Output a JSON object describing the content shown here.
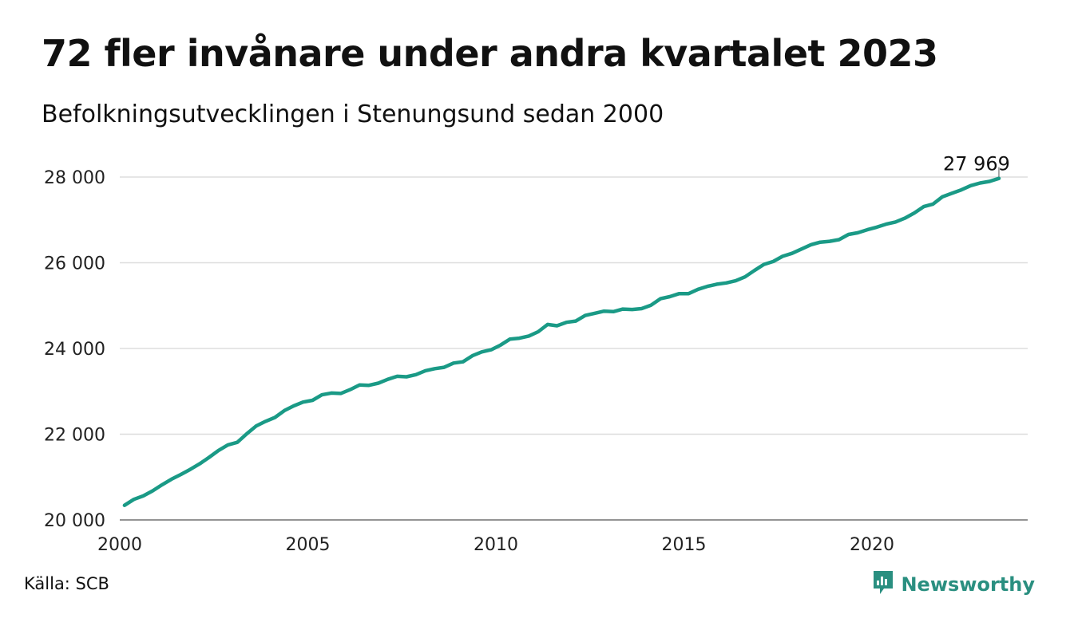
{
  "header": {
    "title": "72 fler invånare under andra kvartalet 2023",
    "subtitle": "Befolkningsutvecklingen i Stenungsund sedan 2000"
  },
  "footer": {
    "source": "Källa: SCB",
    "brand": "Newsworthy",
    "brand_icon": "newsworthy-logo-icon"
  },
  "colors": {
    "line": "#1a9a86",
    "grid": "#dddddd",
    "brand": "#2a8f80"
  },
  "chart_data": {
    "type": "line",
    "title": "72 fler invånare under andra kvartalet 2023",
    "subtitle": "Befolkningsutvecklingen i Stenungsund sedan 2000",
    "xlabel": "",
    "ylabel": "",
    "xlim": [
      2000,
      2024
    ],
    "ylim": [
      20000,
      28000
    ],
    "x_ticks": [
      2000,
      2005,
      2010,
      2015,
      2020
    ],
    "x_tick_labels": [
      "2000",
      "2005",
      "2010",
      "2015",
      "2020"
    ],
    "y_ticks": [
      20000,
      22000,
      24000,
      26000,
      28000
    ],
    "y_tick_labels": [
      "20 000",
      "22 000",
      "24 000",
      "26 000",
      "28 000"
    ],
    "grid": true,
    "annotation": {
      "x": 2023.375,
      "y": 27969,
      "label": "27 969"
    },
    "series": [
      {
        "values": [
          [
            2000.125,
            20340
          ],
          [
            2000.375,
            20480
          ],
          [
            2000.625,
            20560
          ],
          [
            2000.875,
            20680
          ],
          [
            2001.125,
            20820
          ],
          [
            2001.375,
            20950
          ],
          [
            2001.625,
            21060
          ],
          [
            2001.875,
            21180
          ],
          [
            2002.125,
            21310
          ],
          [
            2002.375,
            21460
          ],
          [
            2002.625,
            21620
          ],
          [
            2002.875,
            21750
          ],
          [
            2003.125,
            21810
          ],
          [
            2003.375,
            22010
          ],
          [
            2003.625,
            22190
          ],
          [
            2003.875,
            22300
          ],
          [
            2004.125,
            22390
          ],
          [
            2004.375,
            22550
          ],
          [
            2004.625,
            22660
          ],
          [
            2004.875,
            22750
          ],
          [
            2005.125,
            22790
          ],
          [
            2005.375,
            22920
          ],
          [
            2005.625,
            22960
          ],
          [
            2005.875,
            22950
          ],
          [
            2006.125,
            23040
          ],
          [
            2006.375,
            23150
          ],
          [
            2006.625,
            23140
          ],
          [
            2006.875,
            23190
          ],
          [
            2007.125,
            23280
          ],
          [
            2007.375,
            23350
          ],
          [
            2007.625,
            23340
          ],
          [
            2007.875,
            23390
          ],
          [
            2008.125,
            23480
          ],
          [
            2008.375,
            23530
          ],
          [
            2008.625,
            23560
          ],
          [
            2008.875,
            23660
          ],
          [
            2009.125,
            23690
          ],
          [
            2009.375,
            23830
          ],
          [
            2009.625,
            23920
          ],
          [
            2009.875,
            23970
          ],
          [
            2010.125,
            24080
          ],
          [
            2010.375,
            24220
          ],
          [
            2010.625,
            24240
          ],
          [
            2010.875,
            24290
          ],
          [
            2011.125,
            24390
          ],
          [
            2011.375,
            24560
          ],
          [
            2011.625,
            24530
          ],
          [
            2011.875,
            24610
          ],
          [
            2012.125,
            24640
          ],
          [
            2012.375,
            24770
          ],
          [
            2012.625,
            24820
          ],
          [
            2012.875,
            24870
          ],
          [
            2013.125,
            24860
          ],
          [
            2013.375,
            24920
          ],
          [
            2013.625,
            24910
          ],
          [
            2013.875,
            24930
          ],
          [
            2014.125,
            25010
          ],
          [
            2014.375,
            25160
          ],
          [
            2014.625,
            25210
          ],
          [
            2014.875,
            25280
          ],
          [
            2015.125,
            25280
          ],
          [
            2015.375,
            25380
          ],
          [
            2015.625,
            25450
          ],
          [
            2015.875,
            25500
          ],
          [
            2016.125,
            25530
          ],
          [
            2016.375,
            25580
          ],
          [
            2016.625,
            25670
          ],
          [
            2016.875,
            25820
          ],
          [
            2017.125,
            25960
          ],
          [
            2017.375,
            26030
          ],
          [
            2017.625,
            26150
          ],
          [
            2017.875,
            26220
          ],
          [
            2018.125,
            26320
          ],
          [
            2018.375,
            26420
          ],
          [
            2018.625,
            26480
          ],
          [
            2018.875,
            26500
          ],
          [
            2019.125,
            26540
          ],
          [
            2019.375,
            26660
          ],
          [
            2019.625,
            26700
          ],
          [
            2019.875,
            26770
          ],
          [
            2020.125,
            26830
          ],
          [
            2020.375,
            26900
          ],
          [
            2020.625,
            26950
          ],
          [
            2020.875,
            27040
          ],
          [
            2021.125,
            27160
          ],
          [
            2021.375,
            27310
          ],
          [
            2021.625,
            27370
          ],
          [
            2021.875,
            27540
          ],
          [
            2022.125,
            27620
          ],
          [
            2022.375,
            27700
          ],
          [
            2022.625,
            27800
          ],
          [
            2022.875,
            27860
          ],
          [
            2023.125,
            27897
          ],
          [
            2023.375,
            27969
          ]
        ]
      }
    ]
  }
}
